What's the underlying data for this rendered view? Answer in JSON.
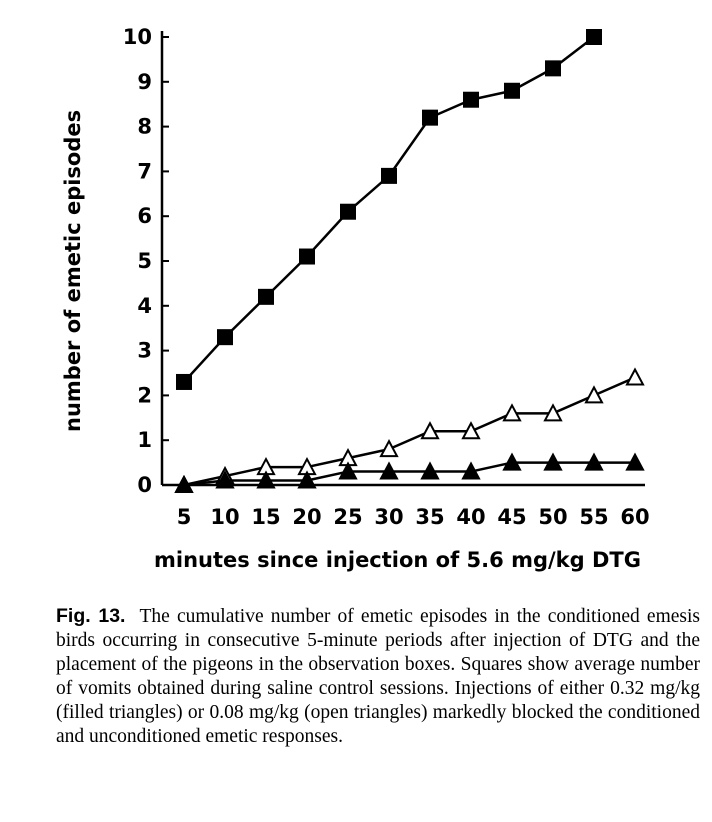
{
  "chart_data": {
    "type": "line",
    "xlabel": "minutes since injection of 5.6 mg/kg DTG",
    "ylabel": "number of emetic episodes",
    "x": [
      5,
      10,
      15,
      20,
      25,
      30,
      35,
      40,
      45,
      50,
      55,
      60
    ],
    "xlim": [
      5,
      60
    ],
    "ylim": [
      0,
      10
    ],
    "yticks": [
      0,
      1,
      2,
      3,
      4,
      5,
      6,
      7,
      8,
      9,
      10
    ],
    "grid": false,
    "series": [
      {
        "marker": "filled-square",
        "color": "#000000",
        "values": [
          2.3,
          3.3,
          4.2,
          5.1,
          6.1,
          6.9,
          8.2,
          8.6,
          8.8,
          9.3,
          10.0,
          null
        ]
      },
      {
        "marker": "open-triangle",
        "color": "#000000",
        "values": [
          0,
          0.2,
          0.4,
          0.4,
          0.6,
          0.8,
          1.2,
          1.2,
          1.6,
          1.6,
          2.0,
          2.4
        ]
      },
      {
        "marker": "filled-triangle",
        "color": "#000000",
        "values": [
          0,
          0.1,
          0.1,
          0.1,
          0.3,
          0.3,
          0.3,
          0.3,
          0.5,
          0.5,
          0.5,
          0.5
        ]
      }
    ]
  },
  "caption": {
    "label": "Fig. 13.",
    "text": "The cumulative number of emetic episodes in the conditioned emesis birds occurring in consecutive 5-minute periods after injection of DTG and the placement of the pigeons in the observation boxes. Squares show average number of vomits obtained during saline control sessions. Injections of either 0.32 mg/kg (filled triangles) or 0.08 mg/kg (open triangles) markedly blocked the conditioned and unconditioned emetic responses."
  }
}
